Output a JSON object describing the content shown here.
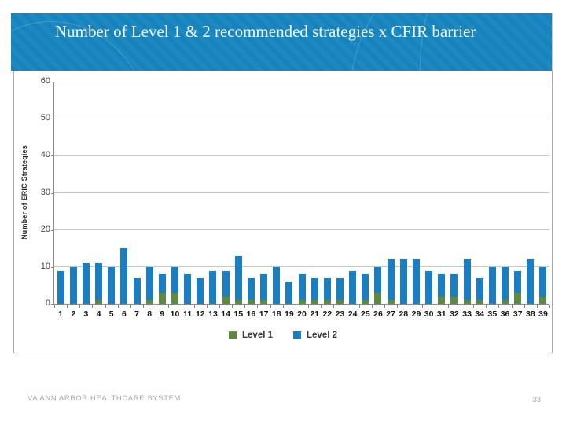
{
  "slide": {
    "title": "Number of Level 1 & 2 recommended strategies x CFIR barrier",
    "footer": "VA ANN ARBOR HEALTHCARE SYSTEM",
    "page_number": "33"
  },
  "colors": {
    "header_blue": "#1787c1",
    "level1_green": "#5b8a40",
    "level2_blue": "#1b7ec0",
    "gridline": "#c6c6c6",
    "axis": "#898989"
  },
  "chart_data": {
    "type": "bar",
    "stacked": true,
    "title": "",
    "xlabel": "",
    "ylabel": "Number of ERIC Strategies",
    "ylim": [
      0,
      60
    ],
    "yticks": [
      0,
      10,
      20,
      30,
      40,
      50,
      60
    ],
    "grid": true,
    "legend_position": "bottom",
    "categories": [
      1,
      2,
      3,
      4,
      5,
      6,
      7,
      8,
      9,
      10,
      11,
      12,
      13,
      14,
      15,
      16,
      17,
      18,
      19,
      20,
      21,
      22,
      23,
      24,
      25,
      26,
      27,
      28,
      29,
      30,
      31,
      32,
      33,
      34,
      35,
      36,
      37,
      38,
      39
    ],
    "series": [
      {
        "name": "Level 1",
        "color": "#5b8a40",
        "values": [
          0,
          0,
          0,
          1,
          0,
          0,
          0,
          1,
          3,
          3,
          0,
          0,
          0,
          2,
          1,
          1,
          1,
          0,
          0,
          1,
          1,
          1,
          1,
          0,
          1,
          3,
          1,
          0,
          0,
          0,
          2,
          2,
          1,
          1,
          0,
          1,
          3,
          0,
          2
        ]
      },
      {
        "name": "Level 2",
        "color": "#1b7ec0",
        "values": [
          9,
          10,
          11,
          10,
          10,
          15,
          7,
          9,
          5,
          7,
          8,
          7,
          9,
          7,
          12,
          6,
          7,
          10,
          6,
          7,
          6,
          6,
          6,
          9,
          7,
          7,
          11,
          12,
          12,
          9,
          6,
          6,
          11,
          6,
          10,
          9,
          6,
          12,
          8
        ]
      }
    ]
  }
}
